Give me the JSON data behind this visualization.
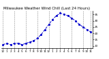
{
  "title": "Milwaukee Weather Wind Chill (Last 24 Hours)",
  "x_values": [
    0,
    1,
    2,
    3,
    4,
    5,
    6,
    7,
    8,
    9,
    10,
    11,
    12,
    13,
    14,
    15,
    16,
    17,
    18,
    19,
    20,
    21,
    22,
    23
  ],
  "y_values": [
    11,
    12,
    11,
    12,
    12,
    11,
    12,
    13,
    14,
    16,
    19,
    23,
    27,
    31,
    34,
    36,
    35,
    34,
    32,
    30,
    27,
    25,
    23,
    21
  ],
  "ylim": [
    8,
    38
  ],
  "yticks": [
    10,
    15,
    20,
    25,
    30,
    35
  ],
  "ytick_labels": [
    "10",
    "15",
    "20",
    "25",
    "30",
    "35"
  ],
  "xtick_labels": [
    "12",
    "1",
    "2",
    "3",
    "4",
    "5",
    "6",
    "7",
    "8",
    "9",
    "10",
    "11",
    "12",
    "1",
    "2",
    "3",
    "4",
    "5",
    "6",
    "7",
    "8",
    "9",
    "10",
    "11"
  ],
  "line_color": "#0000cc",
  "marker": "o",
  "marker_size": 1.2,
  "line_style": "--",
  "line_width": 0.7,
  "bg_color": "#ffffff",
  "grid_color": "#888888",
  "grid_positions": [
    0,
    3,
    6,
    9,
    12,
    15,
    18,
    21,
    23
  ],
  "title_fontsize": 4.0,
  "tick_fontsize": 3.0,
  "title_color": "#000000"
}
